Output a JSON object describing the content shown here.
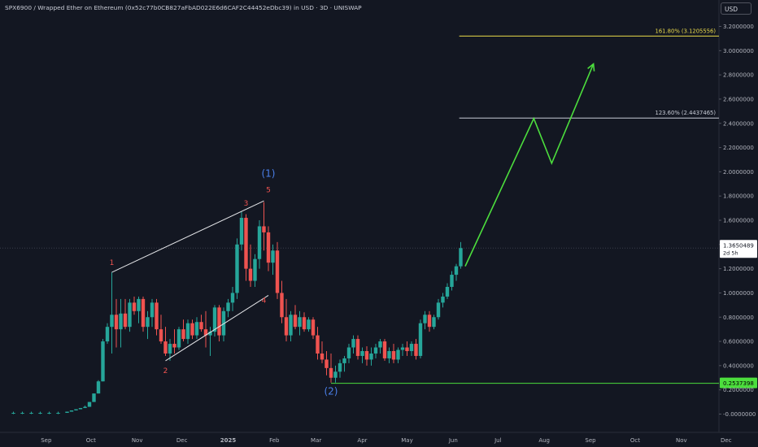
{
  "header": {
    "title": "SPX6900 / Wrapped Ether on Ethereum (0x52c77b0CB827aFbAD022E6d6CAF2C44452eDbc39) in USD · 3D · UNISWAP",
    "currency_button": "USD"
  },
  "colors": {
    "background": "#131722",
    "up": "#26a69a",
    "down": "#ef5350",
    "projection": "#4cde3d",
    "fib_161": "#e8d84a",
    "support": "#4cde3d",
    "wave_blue": "#4a7fe8",
    "wave_red": "#ef5350"
  },
  "chart_data": {
    "type": "candlestick",
    "y_axis": {
      "ticks": [
        "3.2000000",
        "3.0000000",
        "2.8000000",
        "2.6000000",
        "2.4000000",
        "2.2000000",
        "2.0000000",
        "1.8000000",
        "1.6000000",
        "1.4000000",
        "1.2000000",
        "1.0000000",
        "0.8000000",
        "0.6000000",
        "0.4000000",
        "0.2000000",
        "-0.0000000"
      ],
      "ylim": [
        -0.03,
        3.4
      ]
    },
    "x_axis": {
      "ticks": [
        {
          "label": "Sep",
          "date": "2024-09-01"
        },
        {
          "label": "Oct",
          "date": "2024-10-01"
        },
        {
          "label": "Nov",
          "date": "2024-11-01"
        },
        {
          "label": "Dec",
          "date": "2024-12-01"
        },
        {
          "label": "2025",
          "date": "2025-01-01"
        },
        {
          "label": "Feb",
          "date": "2025-02-01"
        },
        {
          "label": "Mar",
          "date": "2025-03-01"
        },
        {
          "label": "Apr",
          "date": "2025-04-01"
        },
        {
          "label": "May",
          "date": "2025-05-01"
        },
        {
          "label": "Jun",
          "date": "2025-06-01"
        },
        {
          "label": "Jul",
          "date": "2025-07-01"
        },
        {
          "label": "Aug",
          "date": "2025-08-01"
        },
        {
          "label": "Sep",
          "date": "2025-09-01"
        },
        {
          "label": "Oct",
          "date": "2025-10-01"
        },
        {
          "label": "Nov",
          "date": "2025-11-01"
        },
        {
          "label": "Dec",
          "date": "2025-12-01"
        }
      ]
    },
    "candles": [
      {
        "x": "2024-08-10",
        "o": 0.01,
        "h": 0.02,
        "l": 0.0,
        "c": 0.01
      },
      {
        "x": "2024-08-16",
        "o": 0.01,
        "h": 0.02,
        "l": 0.0,
        "c": 0.01
      },
      {
        "x": "2024-08-22",
        "o": 0.01,
        "h": 0.02,
        "l": 0.0,
        "c": 0.01
      },
      {
        "x": "2024-08-28",
        "o": 0.01,
        "h": 0.02,
        "l": 0.0,
        "c": 0.01
      },
      {
        "x": "2024-09-03",
        "o": 0.01,
        "h": 0.02,
        "l": 0.0,
        "c": 0.01
      },
      {
        "x": "2024-09-09",
        "o": 0.01,
        "h": 0.02,
        "l": 0.0,
        "c": 0.01
      },
      {
        "x": "2024-09-15",
        "o": 0.01,
        "h": 0.02,
        "l": 0.01,
        "c": 0.02
      },
      {
        "x": "2024-09-18",
        "o": 0.02,
        "h": 0.03,
        "l": 0.02,
        "c": 0.03
      },
      {
        "x": "2024-09-21",
        "o": 0.03,
        "h": 0.04,
        "l": 0.03,
        "c": 0.04
      },
      {
        "x": "2024-09-24",
        "o": 0.04,
        "h": 0.05,
        "l": 0.04,
        "c": 0.05
      },
      {
        "x": "2024-09-27",
        "o": 0.05,
        "h": 0.07,
        "l": 0.05,
        "c": 0.06
      },
      {
        "x": "2024-09-30",
        "o": 0.06,
        "h": 0.1,
        "l": 0.06,
        "c": 0.1
      },
      {
        "x": "2024-10-03",
        "o": 0.1,
        "h": 0.17,
        "l": 0.1,
        "c": 0.17
      },
      {
        "x": "2024-10-06",
        "o": 0.17,
        "h": 0.28,
        "l": 0.17,
        "c": 0.27
      },
      {
        "x": "2024-10-09",
        "o": 0.27,
        "h": 0.62,
        "l": 0.27,
        "c": 0.6
      },
      {
        "x": "2024-10-12",
        "o": 0.6,
        "h": 0.75,
        "l": 0.58,
        "c": 0.72
      },
      {
        "x": "2024-10-15",
        "o": 0.72,
        "h": 1.17,
        "l": 0.5,
        "c": 0.82
      },
      {
        "x": "2024-10-18",
        "o": 0.82,
        "h": 0.95,
        "l": 0.55,
        "c": 0.7
      },
      {
        "x": "2024-10-21",
        "o": 0.7,
        "h": 0.95,
        "l": 0.55,
        "c": 0.83
      },
      {
        "x": "2024-10-24",
        "o": 0.83,
        "h": 0.95,
        "l": 0.7,
        "c": 0.72
      },
      {
        "x": "2024-10-27",
        "o": 0.72,
        "h": 0.95,
        "l": 0.68,
        "c": 0.92
      },
      {
        "x": "2024-10-30",
        "o": 0.92,
        "h": 0.97,
        "l": 0.82,
        "c": 0.85
      },
      {
        "x": "2024-11-02",
        "o": 0.85,
        "h": 0.97,
        "l": 0.75,
        "c": 0.95
      },
      {
        "x": "2024-11-05",
        "o": 0.95,
        "h": 0.97,
        "l": 0.68,
        "c": 0.72
      },
      {
        "x": "2024-11-08",
        "o": 0.72,
        "h": 0.85,
        "l": 0.62,
        "c": 0.8
      },
      {
        "x": "2024-11-11",
        "o": 0.8,
        "h": 0.95,
        "l": 0.72,
        "c": 0.92
      },
      {
        "x": "2024-11-14",
        "o": 0.92,
        "h": 0.95,
        "l": 0.65,
        "c": 0.7
      },
      {
        "x": "2024-11-17",
        "o": 0.7,
        "h": 0.82,
        "l": 0.58,
        "c": 0.6
      },
      {
        "x": "2024-11-20",
        "o": 0.6,
        "h": 0.72,
        "l": 0.48,
        "c": 0.5
      },
      {
        "x": "2024-11-23",
        "o": 0.5,
        "h": 0.62,
        "l": 0.44,
        "c": 0.58
      },
      {
        "x": "2024-11-26",
        "o": 0.58,
        "h": 0.7,
        "l": 0.5,
        "c": 0.55
      },
      {
        "x": "2024-11-29",
        "o": 0.55,
        "h": 0.72,
        "l": 0.53,
        "c": 0.7
      },
      {
        "x": "2024-12-02",
        "o": 0.7,
        "h": 0.78,
        "l": 0.6,
        "c": 0.62
      },
      {
        "x": "2024-12-05",
        "o": 0.62,
        "h": 0.78,
        "l": 0.58,
        "c": 0.75
      },
      {
        "x": "2024-12-08",
        "o": 0.75,
        "h": 0.78,
        "l": 0.62,
        "c": 0.65
      },
      {
        "x": "2024-12-11",
        "o": 0.65,
        "h": 0.8,
        "l": 0.62,
        "c": 0.76
      },
      {
        "x": "2024-12-14",
        "o": 0.76,
        "h": 0.82,
        "l": 0.68,
        "c": 0.7
      },
      {
        "x": "2024-12-17",
        "o": 0.7,
        "h": 0.85,
        "l": 0.55,
        "c": 0.65
      },
      {
        "x": "2024-12-20",
        "o": 0.65,
        "h": 0.72,
        "l": 0.48,
        "c": 0.68
      },
      {
        "x": "2024-12-23",
        "o": 0.68,
        "h": 0.9,
        "l": 0.64,
        "c": 0.88
      },
      {
        "x": "2024-12-26",
        "o": 0.88,
        "h": 0.9,
        "l": 0.6,
        "c": 0.65
      },
      {
        "x": "2024-12-29",
        "o": 0.65,
        "h": 0.88,
        "l": 0.6,
        "c": 0.85
      },
      {
        "x": "2025-01-01",
        "o": 0.85,
        "h": 0.95,
        "l": 0.8,
        "c": 0.92
      },
      {
        "x": "2025-01-04",
        "o": 0.92,
        "h": 1.05,
        "l": 0.85,
        "c": 1.0
      },
      {
        "x": "2025-01-07",
        "o": 1.0,
        "h": 1.45,
        "l": 0.95,
        "c": 1.4
      },
      {
        "x": "2025-01-10",
        "o": 1.4,
        "h": 1.67,
        "l": 1.35,
        "c": 1.62
      },
      {
        "x": "2025-01-13",
        "o": 1.62,
        "h": 1.65,
        "l": 1.1,
        "c": 1.2
      },
      {
        "x": "2025-01-16",
        "o": 1.2,
        "h": 1.4,
        "l": 1.05,
        "c": 1.1
      },
      {
        "x": "2025-01-19",
        "o": 1.1,
        "h": 1.32,
        "l": 1.05,
        "c": 1.28
      },
      {
        "x": "2025-01-22",
        "o": 1.28,
        "h": 1.6,
        "l": 1.2,
        "c": 1.55
      },
      {
        "x": "2025-01-25",
        "o": 1.55,
        "h": 1.75,
        "l": 1.35,
        "c": 1.5
      },
      {
        "x": "2025-01-28",
        "o": 1.5,
        "h": 1.55,
        "l": 1.18,
        "c": 1.25
      },
      {
        "x": "2025-01-31",
        "o": 1.25,
        "h": 1.4,
        "l": 1.15,
        "c": 1.35
      },
      {
        "x": "2025-02-03",
        "o": 1.35,
        "h": 1.42,
        "l": 0.95,
        "c": 1.0
      },
      {
        "x": "2025-02-06",
        "o": 1.0,
        "h": 1.1,
        "l": 0.75,
        "c": 0.8
      },
      {
        "x": "2025-02-09",
        "o": 0.8,
        "h": 0.95,
        "l": 0.6,
        "c": 0.65
      },
      {
        "x": "2025-02-12",
        "o": 0.65,
        "h": 0.85,
        "l": 0.6,
        "c": 0.82
      },
      {
        "x": "2025-02-15",
        "o": 0.82,
        "h": 0.9,
        "l": 0.7,
        "c": 0.72
      },
      {
        "x": "2025-02-18",
        "o": 0.72,
        "h": 0.85,
        "l": 0.65,
        "c": 0.8
      },
      {
        "x": "2025-02-21",
        "o": 0.8,
        "h": 0.84,
        "l": 0.68,
        "c": 0.7
      },
      {
        "x": "2025-02-24",
        "o": 0.7,
        "h": 0.8,
        "l": 0.68,
        "c": 0.78
      },
      {
        "x": "2025-02-27",
        "o": 0.78,
        "h": 0.8,
        "l": 0.62,
        "c": 0.65
      },
      {
        "x": "2025-03-02",
        "o": 0.65,
        "h": 0.72,
        "l": 0.45,
        "c": 0.5
      },
      {
        "x": "2025-03-05",
        "o": 0.5,
        "h": 0.6,
        "l": 0.42,
        "c": 0.45
      },
      {
        "x": "2025-03-08",
        "o": 0.45,
        "h": 0.52,
        "l": 0.32,
        "c": 0.38
      },
      {
        "x": "2025-03-11",
        "o": 0.38,
        "h": 0.5,
        "l": 0.26,
        "c": 0.3
      },
      {
        "x": "2025-03-14",
        "o": 0.3,
        "h": 0.4,
        "l": 0.26,
        "c": 0.35
      },
      {
        "x": "2025-03-17",
        "o": 0.35,
        "h": 0.45,
        "l": 0.3,
        "c": 0.42
      },
      {
        "x": "2025-03-20",
        "o": 0.42,
        "h": 0.48,
        "l": 0.35,
        "c": 0.46
      },
      {
        "x": "2025-03-23",
        "o": 0.46,
        "h": 0.58,
        "l": 0.42,
        "c": 0.55
      },
      {
        "x": "2025-03-26",
        "o": 0.55,
        "h": 0.65,
        "l": 0.5,
        "c": 0.62
      },
      {
        "x": "2025-03-29",
        "o": 0.62,
        "h": 0.65,
        "l": 0.45,
        "c": 0.48
      },
      {
        "x": "2025-04-01",
        "o": 0.48,
        "h": 0.55,
        "l": 0.42,
        "c": 0.52
      },
      {
        "x": "2025-04-04",
        "o": 0.52,
        "h": 0.56,
        "l": 0.4,
        "c": 0.45
      },
      {
        "x": "2025-04-07",
        "o": 0.45,
        "h": 0.55,
        "l": 0.4,
        "c": 0.5
      },
      {
        "x": "2025-04-10",
        "o": 0.5,
        "h": 0.58,
        "l": 0.46,
        "c": 0.55
      },
      {
        "x": "2025-04-13",
        "o": 0.55,
        "h": 0.62,
        "l": 0.5,
        "c": 0.6
      },
      {
        "x": "2025-04-16",
        "o": 0.6,
        "h": 0.62,
        "l": 0.44,
        "c": 0.46
      },
      {
        "x": "2025-04-19",
        "o": 0.46,
        "h": 0.55,
        "l": 0.42,
        "c": 0.52
      },
      {
        "x": "2025-04-22",
        "o": 0.52,
        "h": 0.58,
        "l": 0.42,
        "c": 0.45
      },
      {
        "x": "2025-04-25",
        "o": 0.45,
        "h": 0.55,
        "l": 0.42,
        "c": 0.53
      },
      {
        "x": "2025-04-28",
        "o": 0.53,
        "h": 0.58,
        "l": 0.48,
        "c": 0.55
      },
      {
        "x": "2025-05-01",
        "o": 0.55,
        "h": 0.6,
        "l": 0.48,
        "c": 0.52
      },
      {
        "x": "2025-05-04",
        "o": 0.52,
        "h": 0.6,
        "l": 0.48,
        "c": 0.58
      },
      {
        "x": "2025-05-07",
        "o": 0.58,
        "h": 0.62,
        "l": 0.45,
        "c": 0.48
      },
      {
        "x": "2025-05-10",
        "o": 0.48,
        "h": 0.78,
        "l": 0.46,
        "c": 0.75
      },
      {
        "x": "2025-05-13",
        "o": 0.75,
        "h": 0.85,
        "l": 0.7,
        "c": 0.82
      },
      {
        "x": "2025-05-16",
        "o": 0.82,
        "h": 0.85,
        "l": 0.68,
        "c": 0.72
      },
      {
        "x": "2025-05-19",
        "o": 0.72,
        "h": 0.82,
        "l": 0.7,
        "c": 0.8
      },
      {
        "x": "2025-05-22",
        "o": 0.8,
        "h": 0.95,
        "l": 0.78,
        "c": 0.92
      },
      {
        "x": "2025-05-25",
        "o": 0.92,
        "h": 1.0,
        "l": 0.88,
        "c": 0.97
      },
      {
        "x": "2025-05-28",
        "o": 0.97,
        "h": 1.08,
        "l": 0.95,
        "c": 1.05
      },
      {
        "x": "2025-05-31",
        "o": 1.05,
        "h": 1.18,
        "l": 1.02,
        "c": 1.15
      },
      {
        "x": "2025-06-03",
        "o": 1.15,
        "h": 1.24,
        "l": 1.1,
        "c": 1.22
      },
      {
        "x": "2025-06-06",
        "o": 1.22,
        "h": 1.42,
        "l": 1.2,
        "c": 1.37
      }
    ],
    "price_label": {
      "value": "1.3650489",
      "countdown": "2d 5h"
    },
    "horizontal_levels": [
      {
        "name": "fib-161",
        "label": "161.80% (3.1205556)",
        "y": 3.1205556,
        "x_start": "2025-06-05"
      },
      {
        "name": "fib-123",
        "label": "123.60% (2.4437465)",
        "y": 2.4437465,
        "x_start": "2025-06-05"
      },
      {
        "name": "support",
        "label": "0.2537398",
        "y": 0.2537398,
        "x_start": "2025-03-11"
      }
    ],
    "projection_path": [
      {
        "x": "2025-06-09",
        "y": 1.22
      },
      {
        "x": "2025-07-25",
        "y": 2.44
      },
      {
        "x": "2025-08-06",
        "y": 2.07
      },
      {
        "x": "2025-09-03",
        "y": 2.89
      }
    ],
    "channel_lines": [
      {
        "x1": "2024-10-15",
        "y1": 1.17,
        "x2": "2025-01-25",
        "y2": 1.76
      },
      {
        "x1": "2024-11-20",
        "y1": 0.44,
        "x2": "2025-01-28",
        "y2": 0.98
      }
    ],
    "wave_labels": [
      {
        "text": "1",
        "x": "2024-10-15",
        "y": 1.23,
        "color": "red"
      },
      {
        "text": "2",
        "x": "2024-11-20",
        "y": 0.34,
        "color": "red"
      },
      {
        "text": "3",
        "x": "2025-01-13",
        "y": 1.72,
        "color": "red"
      },
      {
        "text": "4",
        "x": "2025-01-25",
        "y": 0.92,
        "color": "red"
      },
      {
        "text": "5",
        "x": "2025-01-28",
        "y": 1.83,
        "color": "red"
      },
      {
        "text": "(1)",
        "x": "2025-01-28",
        "y": 1.96,
        "color": "blue"
      },
      {
        "text": "(2)",
        "x": "2025-03-11",
        "y": 0.16,
        "color": "blue"
      }
    ]
  }
}
